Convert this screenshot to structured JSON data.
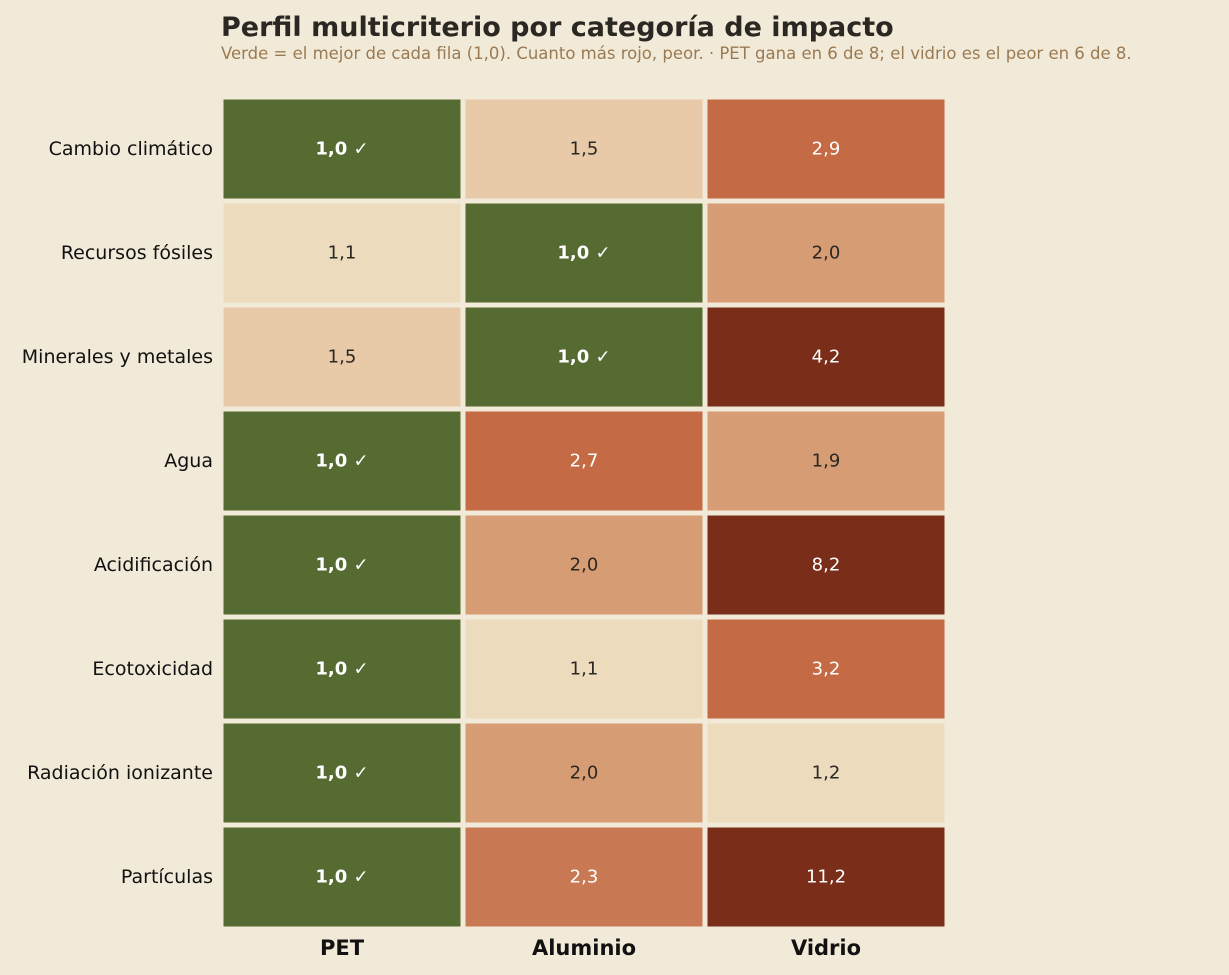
{
  "chart_data": {
    "type": "heatmap",
    "title": "Perfil multicriterio por categoría de impacto",
    "subtitle": "Verde = el mejor de cada fila (1,0). Cuanto más rojo, peor.  ·  PET gana en 6 de 8; el vidrio es el peor en 6 de 8.",
    "columns": [
      "PET",
      "Aluminio",
      "Vidrio"
    ],
    "rows": [
      "Cambio climático",
      "Recursos fósiles",
      "Minerales y metales",
      "Agua",
      "Acidificación",
      "Ecotoxicidad",
      "Radiación ionizante",
      "Partículas"
    ],
    "values": [
      [
        1.0,
        1.5,
        2.9
      ],
      [
        1.1,
        1.0,
        2.0
      ],
      [
        1.5,
        1.0,
        4.2
      ],
      [
        1.0,
        2.7,
        1.9
      ],
      [
        1.0,
        2.0,
        8.2
      ],
      [
        1.0,
        1.1,
        3.2
      ],
      [
        1.0,
        2.0,
        1.2
      ],
      [
        1.0,
        2.3,
        11.2
      ]
    ],
    "best_marker": "✓",
    "decimal_separator": ",",
    "colors": {
      "best": "#566b31",
      "scale": [
        "#f2e3c8",
        "#eddbbe",
        "#e8c9a8",
        "#e0b48c",
        "#d69c74",
        "#c87953",
        "#c46a44",
        "#b35735",
        "#7a2d18"
      ],
      "background": "#f2ead8",
      "dark_text": "#2b2722",
      "light_text": "#ffffff"
    }
  }
}
